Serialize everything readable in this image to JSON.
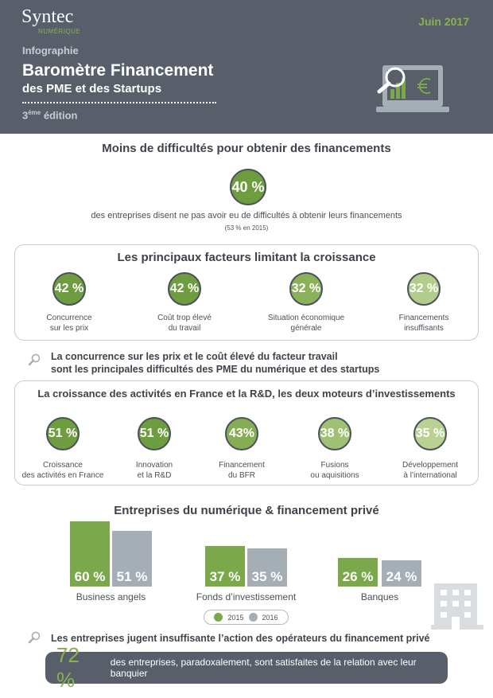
{
  "header": {
    "logo": "Syntec",
    "logo_sub": "NUMÉRIQUE",
    "date": "Juin 2017",
    "kicker": "Infographie",
    "title": "Baromètre Financement",
    "subtitle": "des PME et des Startups",
    "edition_num": "3",
    "edition_sup": "ème",
    "edition_word": "édition",
    "icon": "laptop-magnifier-euro-icon"
  },
  "difficulties": {
    "title": "Moins de difficultés pour obtenir des financements",
    "value": "40 %",
    "text": "des entreprises disent ne pas avoir eu de difficultés à obtenir leurs financements",
    "note": "(53 % en 2015)"
  },
  "factors": {
    "title": "Les principaux facteurs limitant la croissance",
    "items": [
      {
        "value": "42 %",
        "label1": "Concurrence",
        "label2": "sur les prix",
        "color": "#6e9d3f"
      },
      {
        "value": "42 %",
        "label1": "Coût trop élevé",
        "label2": "du travail",
        "color": "#6e9d3f"
      },
      {
        "value": "32 %",
        "label1": "Situation économique",
        "label2": "générale",
        "color": "#8bb15a"
      },
      {
        "value": "32 %",
        "label1": "Financements",
        "label2": "insuffisants",
        "color": "#b2cc8a"
      }
    ]
  },
  "insight1": {
    "line1": "La concurrence sur les prix et le coût élevé du facteur travail",
    "line2": "sont les principales difficultés des PME du numérique et des startups"
  },
  "investments": {
    "title": "La croissance des activités en France et la R&D, les deux moteurs d’investissements",
    "items": [
      {
        "value": "51 %",
        "label1": "Croissance",
        "label2": "des activités en France",
        "color": "#6e9d3f"
      },
      {
        "value": "51 %",
        "label1": "Innovation",
        "label2": "et la R&D",
        "color": "#6e9d3f"
      },
      {
        "value": "43%",
        "label1": "Financement",
        "label2": "du BFR",
        "color": "#86ad55"
      },
      {
        "value": "38 %",
        "label1": "Fusions",
        "label2": "ou aquisitions",
        "color": "#a0c074"
      },
      {
        "value": "35 %",
        "label1": "Développement",
        "label2": "à l’international",
        "color": "#b9d293"
      }
    ]
  },
  "chart_data": {
    "type": "bar",
    "title": "Entreprises du numérique & financement privé",
    "categories": [
      "Business angels",
      "Fonds d’investissement",
      "Banques"
    ],
    "series": [
      {
        "name": "2015",
        "values": [
          60,
          37,
          26
        ],
        "labels": [
          "60 %",
          "37 %",
          "26 %"
        ],
        "color": "#7aa84a"
      },
      {
        "name": "2016",
        "values": [
          51,
          35,
          24
        ],
        "labels": [
          "51 %",
          "35 %",
          "24 %"
        ],
        "color": "#a5adb5"
      }
    ],
    "legend": "bottom",
    "grid": false
  },
  "insight2": {
    "text": "Les entreprises jugent insuffisante l’action des opérateurs du financement privé"
  },
  "banker": {
    "value": "72 %",
    "text": "des entreprises, paradoxalement, sont satisfaites de la relation avec leur banquier"
  }
}
